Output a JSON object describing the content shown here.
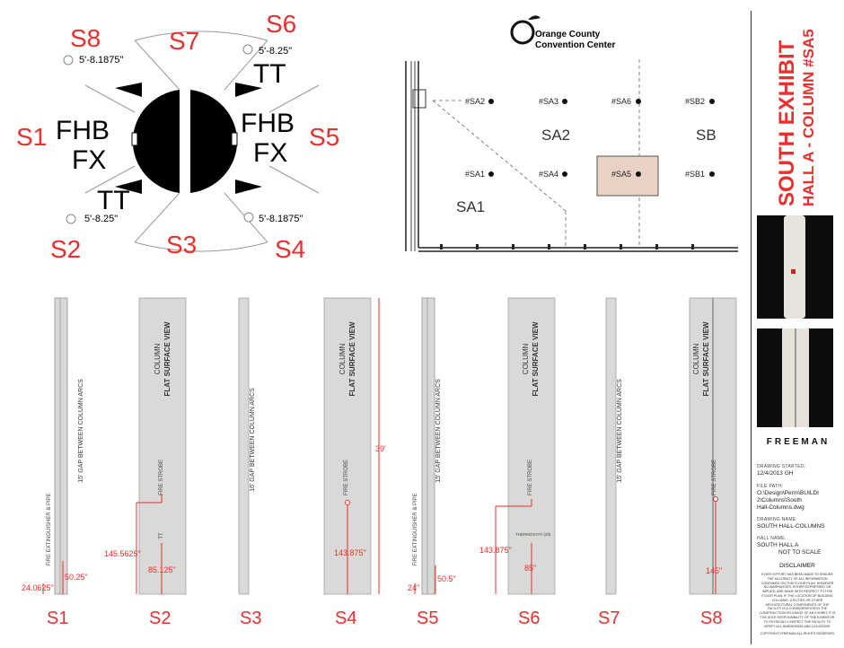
{
  "plan_labels": {
    "S1": "S1",
    "S2": "S2",
    "S3": "S3",
    "S4": "S4",
    "S5": "S5",
    "S6": "S6",
    "S7": "S7",
    "S8": "S8",
    "fhb": "FHB",
    "fx": "FX",
    "tt": "TT",
    "dim_a": "5'-8.1875\"",
    "dim_b": "5'-8.25\""
  },
  "map": {
    "logo_line1": "Orange County",
    "logo_line2": "Convention Center",
    "hall_label": "SOUTH EXHIBIT HALL A",
    "columns": [
      "#SA2",
      "#SA3",
      "#SA6",
      "#SB2",
      "#SA1",
      "#SA4",
      "#SA5",
      "#SB1"
    ],
    "zones": [
      "SA2",
      "SB",
      "SA1"
    ]
  },
  "elevations": {
    "labels": [
      "S1",
      "S2",
      "S3",
      "S4",
      "S5",
      "S6",
      "S7",
      "S8"
    ],
    "gap_15": "15' GAP BETWEEN COLUMN ARCS",
    "gap_16": "16' GAP BETWEEN COLUMN ARCS",
    "column_title_1": "COLUMN",
    "column_title_2": "FLAT SURFACE VIEW",
    "fire_strobe": "FIRE STROBE",
    "fire_ext": "FIRE EXTINGUISHER & PIPE",
    "tt_small": "TT",
    "s6_small": "THERMOSTAT (4ft)",
    "dims": {
      "s1_a": "50.25\"",
      "s1_b": "24.0625\"",
      "s2_a": "145.5625\"",
      "s2_b": "85.125\"",
      "s4_a": "39'",
      "s4_b": "143.875\"",
      "s5_a": "50.5\"",
      "s5_b": "24\"",
      "s6_a": "143.875\"",
      "s6_b": "85\"",
      "s8_a": "145\""
    }
  },
  "sidebar": {
    "title_line1": "SOUTH EXHIBIT",
    "title_line2": "HALL A - COLUMN #SA5",
    "brand": "FREEMAN",
    "drawing_started_label": "DRAWING STARTED:",
    "drawing_started": "12/4/2013  GH",
    "file_path_label": "FILE PATH:",
    "file_path_1": "O:\\Design\\Perm\\BUILDI",
    "file_path_2": "2\\Columns\\South",
    "file_path_3": "Hall-Columns.dwg",
    "drawing_name_label": "DRAWING NAME:",
    "drawing_name": "SOUTH HALL-COLUMNS",
    "hall_name_label": "HALL NAME:",
    "hall_name": "SOUTH HALL A",
    "scale": "NOT TO SCALE",
    "disclaimer_title": "DISCLAIMER",
    "disclaimer_text": "EVERY EFFORT HAS BEEN MADE TO ENSURE THE ACCURACY OF ALL INFORMATION CONTAINED ON THIS FLOOR PLAN. HOWEVER NO WARRANTIES, EITHER EXPRESSED OR IMPLIED, ARE MADE WITH RESPECT TO THIS FLOOR PLAN. IF THE LOCATION OF BUILDING COLUMNS, UTILITIES OR OTHER ARCHITECTURAL COMPONENTS OF THE FACILITY IS A CONSIDERATION IN THE CONSTRUCTION OR USAGE OF AN EXHIBIT, IT IS THE SOLE RESPONSIBILITY OF THE EXHIBITOR TO PHYSICALLY INSPECT THE FACILITY TO VERIFY ALL DIMENSIONS AND LOCATIONS.",
    "copyright": "COPYRIGHT FREEMAN ALL RIGHTS RESERVED"
  },
  "colors": {
    "accent": "#e8302e",
    "column": "#d9d9d7",
    "highlight": "#e9d2c5"
  }
}
